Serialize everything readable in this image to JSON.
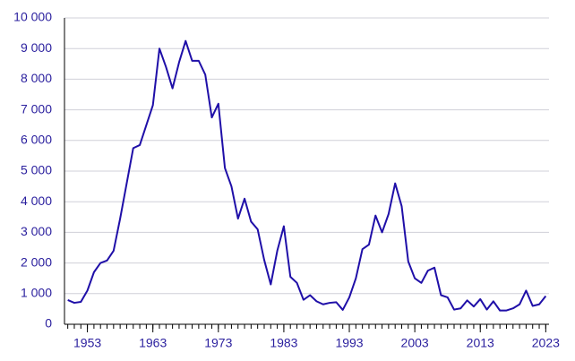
{
  "chart_data": {
    "type": "line",
    "x": [
      1950,
      1951,
      1952,
      1953,
      1954,
      1955,
      1956,
      1957,
      1958,
      1959,
      1960,
      1961,
      1962,
      1963,
      1964,
      1965,
      1966,
      1967,
      1968,
      1969,
      1970,
      1971,
      1972,
      1973,
      1974,
      1975,
      1976,
      1977,
      1978,
      1979,
      1980,
      1981,
      1982,
      1983,
      1984,
      1985,
      1986,
      1987,
      1988,
      1989,
      1990,
      1991,
      1992,
      1993,
      1994,
      1995,
      1996,
      1997,
      1998,
      1999,
      2000,
      2001,
      2002,
      2003,
      2004,
      2005,
      2006,
      2007,
      2008,
      2009,
      2010,
      2011,
      2012,
      2013,
      2014,
      2015,
      2016,
      2017,
      2018,
      2019,
      2020,
      2021,
      2022,
      2023
    ],
    "series": [
      {
        "color": "#1f0fa8",
        "values": [
          790,
          700,
          730,
          1100,
          1700,
          2000,
          2080,
          2400,
          3450,
          4600,
          5750,
          5850,
          6500,
          7150,
          9000,
          8400,
          7700,
          8550,
          9250,
          8600,
          8600,
          8150,
          6750,
          7200,
          5100,
          4500,
          3450,
          4100,
          3350,
          3100,
          2100,
          1300,
          2400,
          3200,
          1550,
          1350,
          800,
          950,
          750,
          650,
          700,
          720,
          470,
          880,
          1500,
          2450,
          2600,
          3550,
          3000,
          3600,
          4600,
          3850,
          2050,
          1500,
          1350,
          1750,
          1850,
          950,
          880,
          480,
          520,
          780,
          580,
          820,
          480,
          750,
          450,
          450,
          520,
          650,
          1100,
          600,
          650,
          920
        ]
      }
    ],
    "xlim": [
      1949.5,
      2023.5
    ],
    "xticks": [
      1953,
      1963,
      1973,
      1983,
      1993,
      2003,
      2013,
      2023
    ],
    "ylim": [
      0,
      10000
    ],
    "yticks": [
      0,
      {
        "value": 1000,
        "label": "1 000"
      },
      {
        "value": 2000,
        "label": "2 000"
      },
      {
        "value": 3000,
        "label": "3 000"
      },
      {
        "value": 4000,
        "label": "4 000"
      },
      {
        "value": 5000,
        "label": "5 000"
      },
      {
        "value": 6000,
        "label": "6 000"
      },
      {
        "value": 7000,
        "label": "7 000"
      },
      {
        "value": 8000,
        "label": "8 000"
      },
      {
        "value": 9000,
        "label": "9 000"
      },
      {
        "value": 10000,
        "label": "10 000"
      }
    ],
    "grid": true
  }
}
